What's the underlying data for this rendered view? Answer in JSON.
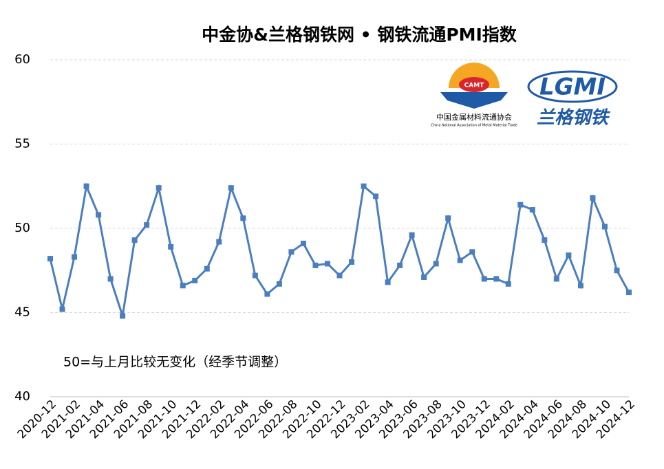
{
  "chart_data": {
    "type": "line",
    "title": "中金协&兰格钢铁网 • 钢铁流通PMI指数",
    "annotation": "50=与上月比较无变化（经季节调整）",
    "categories": [
      "2020-12",
      null,
      "2021-02",
      null,
      "2021-04",
      null,
      "2021-06",
      null,
      "2021-08",
      null,
      "2021-10",
      null,
      "2021-12",
      null,
      "2022-02",
      null,
      "2022-04",
      null,
      "2022-06",
      null,
      "2022-08",
      null,
      "2022-10",
      null,
      "2022-12",
      null,
      "2023-02",
      null,
      "2023-04",
      null,
      "2023-06",
      null,
      "2023-08",
      null,
      "2023-10",
      null,
      "2023-12",
      null,
      "2024-02",
      null,
      "2024-04",
      null,
      "2024-06",
      null,
      "2024-08",
      null,
      "2024-10",
      null,
      "2024-12"
    ],
    "series": [
      {
        "color": "#4a7ebf",
        "values": [
          48.2,
          45.2,
          48.3,
          52.5,
          50.8,
          47.0,
          44.8,
          49.3,
          50.2,
          52.4,
          48.9,
          46.6,
          46.9,
          47.6,
          49.2,
          52.4,
          50.6,
          47.2,
          46.1,
          46.7,
          48.6,
          49.1,
          47.8,
          47.9,
          47.2,
          48.0,
          52.5,
          51.9,
          46.8,
          47.8,
          49.6,
          47.1,
          47.9,
          50.6,
          48.1,
          48.6,
          47.0,
          47.0,
          46.7,
          51.4,
          51.1,
          49.3,
          47.0,
          48.4,
          46.6,
          51.8,
          50.1,
          47.5,
          46.2
        ]
      }
    ],
    "ylim": [
      40,
      60
    ],
    "yticks": [
      40,
      45,
      50,
      55,
      60
    ],
    "grid": true
  },
  "logos": {
    "camt_badge": "CAMT",
    "camt_name": "中国金属材料流通协会",
    "camt_english": "China National Association of Metal Material Trade",
    "lgmi": "LGMI",
    "lgmi_name": "兰格钢铁"
  }
}
